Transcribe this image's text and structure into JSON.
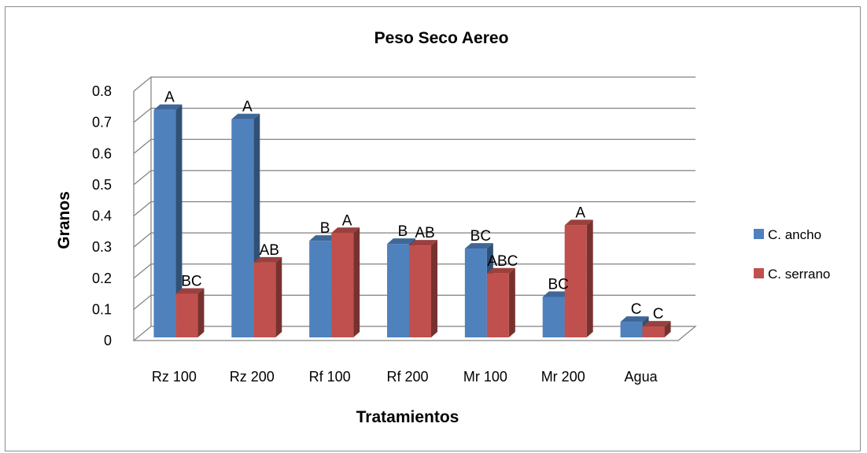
{
  "chart_data": {
    "type": "bar",
    "title": "Peso Seco Aereo",
    "xlabel": "Tratamientos",
    "ylabel": "Granos",
    "categories": [
      "Rz 100",
      "Rz 200",
      "Rf 100",
      "Rf 200",
      "Mr 100",
      "Mr 200",
      "Agua"
    ],
    "ylim": [
      0,
      0.8
    ],
    "yticks": [
      "0",
      "0.1",
      "0.2",
      "0.3",
      "0.4",
      "0.5",
      "0.6",
      "0.7",
      "0.8"
    ],
    "grid": true,
    "legend_position": "right",
    "series": [
      {
        "name": "C. ancho",
        "color": "#4f81bd",
        "values": [
          0.73,
          0.7,
          0.31,
          0.3,
          0.285,
          0.13,
          0.05
        ],
        "labels": [
          "A",
          "A",
          "B",
          "B",
          "BC",
          "BC",
          "C"
        ]
      },
      {
        "name": "C. serrano",
        "color": "#c0504d",
        "values": [
          0.14,
          0.24,
          0.335,
          0.295,
          0.205,
          0.36,
          0.035
        ],
        "labels": [
          "BC",
          "AB",
          "A",
          "AB",
          "ABC",
          "A",
          "C"
        ]
      }
    ]
  }
}
